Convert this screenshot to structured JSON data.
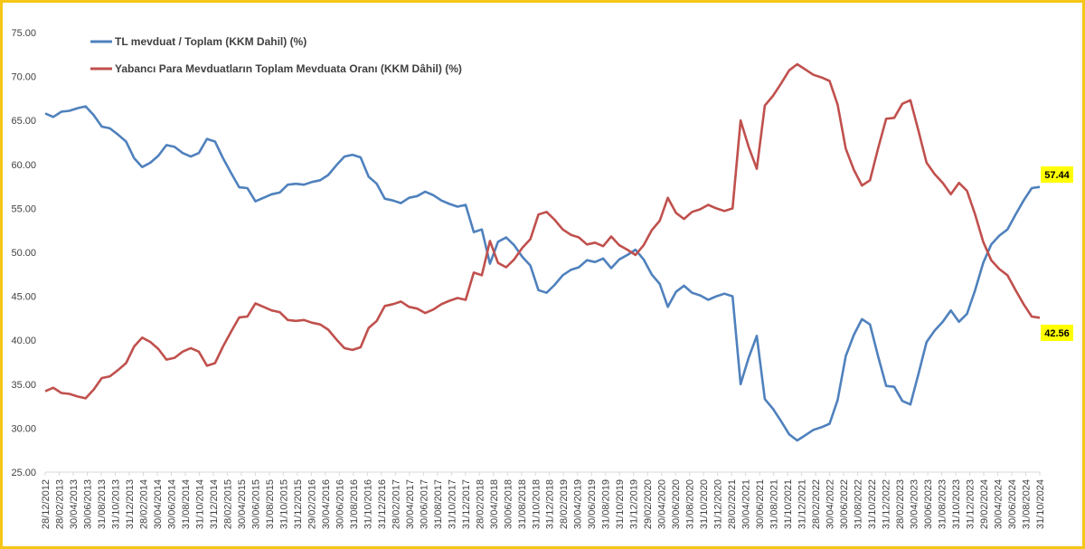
{
  "chart_data": {
    "type": "line",
    "title": "",
    "xlabel": "",
    "ylabel": "",
    "ylim": [
      25,
      75
    ],
    "y_ticks": [
      "25.00",
      "30.00",
      "35.00",
      "40.00",
      "45.00",
      "50.00",
      "55.00",
      "60.00",
      "65.00",
      "70.00",
      "75.00"
    ],
    "x_tick_labels": [
      "28/12/2012",
      "28/02/2013",
      "30/04/2013",
      "30/06/2013",
      "31/08/2013",
      "31/10/2013",
      "31/12/2013",
      "28/02/2014",
      "30/04/2014",
      "30/06/2014",
      "31/08/2014",
      "31/10/2014",
      "31/12/2014",
      "28/02/2015",
      "30/04/2015",
      "30/06/2015",
      "31/08/2015",
      "31/10/2015",
      "31/12/2015",
      "29/02/2016",
      "30/04/2016",
      "30/06/2016",
      "31/08/2016",
      "31/10/2016",
      "31/12/2016",
      "28/02/2017",
      "30/04/2017",
      "30/06/2017",
      "31/08/2017",
      "31/10/2017",
      "31/12/2017",
      "28/02/2018",
      "30/04/2018",
      "30/06/2018",
      "31/08/2018",
      "31/10/2018",
      "31/12/2018",
      "28/02/2019",
      "30/04/2019",
      "30/06/2019",
      "31/08/2019",
      "31/10/2019",
      "31/12/2019",
      "29/02/2020",
      "30/04/2020",
      "30/06/2020",
      "31/08/2020",
      "31/10/2020",
      "31/12/2020",
      "28/02/2021",
      "30/04/2021",
      "30/06/2021",
      "31/08/2021",
      "31/10/2021",
      "31/12/2021",
      "28/02/2022",
      "30/04/2022",
      "30/06/2022",
      "31/08/2022",
      "31/10/2022",
      "31/12/2022",
      "28/02/2023",
      "30/04/2023",
      "30/06/2023",
      "31/08/2023",
      "31/10/2023",
      "31/12/2023",
      "29/02/2024",
      "30/04/2024",
      "30/06/2024",
      "31/08/2024",
      "31/10/2024"
    ],
    "grid": false,
    "legend_position": "top-left",
    "series": [
      {
        "name": "TL mevduat / Toplam (KKM Dahil) (%)",
        "color": "#4f81bd",
        "end_label": "57.44",
        "values": [
          65.8,
          65.4,
          66.0,
          66.1,
          66.4,
          66.6,
          65.6,
          64.3,
          64.1,
          63.4,
          62.6,
          60.7,
          59.7,
          60.2,
          61.0,
          62.2,
          62.0,
          61.3,
          60.9,
          61.3,
          62.9,
          62.6,
          60.7,
          59.0,
          57.4,
          57.3,
          55.8,
          56.2,
          56.6,
          56.8,
          57.7,
          57.8,
          57.7,
          58.0,
          58.2,
          58.8,
          59.9,
          60.9,
          61.1,
          60.8,
          58.6,
          57.8,
          56.1,
          55.9,
          55.6,
          56.2,
          56.4,
          56.9,
          56.5,
          55.9,
          55.5,
          55.2,
          55.4,
          52.3,
          52.6,
          48.7,
          51.2,
          51.7,
          50.8,
          49.5,
          48.5,
          45.7,
          45.4,
          46.3,
          47.4,
          48.0,
          48.3,
          49.1,
          48.9,
          49.3,
          48.2,
          49.2,
          49.7,
          50.3,
          49.2,
          47.5,
          46.4,
          43.8,
          45.5,
          46.2,
          45.4,
          45.1,
          44.6,
          45.0,
          45.3,
          45.0,
          35.0,
          38.0,
          40.5,
          33.3,
          32.2,
          30.8,
          29.3,
          28.6,
          29.2,
          29.8,
          30.1,
          30.5,
          33.2,
          38.2,
          40.6,
          42.4,
          41.8,
          38.2,
          34.8,
          34.7,
          33.1,
          32.7,
          36.2,
          39.8,
          41.1,
          42.1,
          43.4,
          42.1,
          43.0,
          45.7,
          48.8,
          50.9,
          51.9,
          52.6,
          54.3,
          55.9,
          57.3,
          57.44
        ]
      },
      {
        "name": "Yabancı Para Mevduatların Toplam Mevduata Oranı (KKM Dâhil) (%)",
        "color": "#c0504d",
        "end_label": "42.56",
        "values": [
          34.2,
          34.6,
          34.0,
          33.9,
          33.6,
          33.4,
          34.4,
          35.7,
          35.9,
          36.6,
          37.4,
          39.3,
          40.3,
          39.8,
          39.0,
          37.8,
          38.0,
          38.7,
          39.1,
          38.7,
          37.1,
          37.4,
          39.3,
          41.0,
          42.6,
          42.7,
          44.2,
          43.8,
          43.4,
          43.2,
          42.3,
          42.2,
          42.3,
          42.0,
          41.8,
          41.2,
          40.1,
          39.1,
          38.9,
          39.2,
          41.4,
          42.2,
          43.9,
          44.1,
          44.4,
          43.8,
          43.6,
          43.1,
          43.5,
          44.1,
          44.5,
          44.8,
          44.6,
          47.7,
          47.4,
          51.3,
          48.8,
          48.3,
          49.2,
          50.5,
          51.5,
          54.3,
          54.6,
          53.7,
          52.6,
          52.0,
          51.7,
          50.9,
          51.1,
          50.7,
          51.8,
          50.8,
          50.3,
          49.7,
          50.8,
          52.5,
          53.6,
          56.2,
          54.5,
          53.8,
          54.6,
          54.9,
          55.4,
          55.0,
          54.7,
          55.0,
          65.0,
          62.0,
          59.5,
          66.7,
          67.8,
          69.2,
          70.7,
          71.4,
          70.8,
          70.2,
          69.9,
          69.5,
          66.8,
          61.8,
          59.4,
          57.6,
          58.2,
          61.8,
          65.2,
          65.3,
          66.9,
          67.3,
          63.8,
          60.2,
          58.9,
          57.9,
          56.6,
          57.9,
          57.0,
          54.3,
          51.2,
          49.1,
          48.1,
          47.4,
          45.7,
          44.1,
          42.7,
          42.56
        ]
      }
    ]
  }
}
